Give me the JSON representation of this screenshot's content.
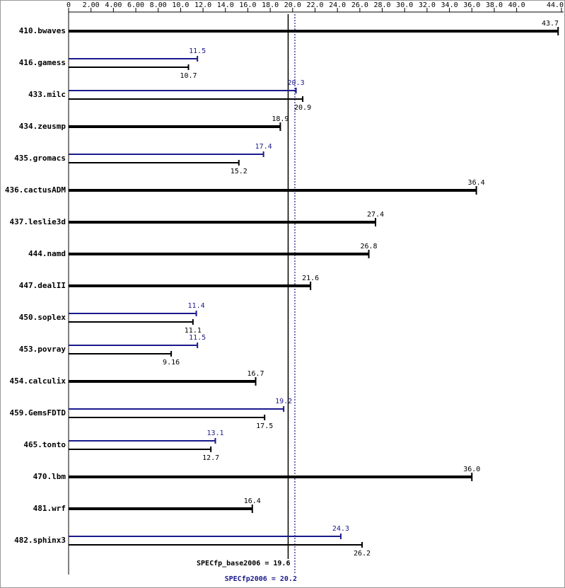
{
  "chart_data": {
    "type": "hbar",
    "categories": [
      "410.bwaves",
      "416.gamess",
      "433.milc",
      "434.zeusmp",
      "435.gromacs",
      "436.cactusADM",
      "437.leslie3d",
      "444.namd",
      "447.dealII",
      "450.soplex",
      "453.povray",
      "454.calculix",
      "459.GemsFDTD",
      "465.tonto",
      "470.lbm",
      "481.wrf",
      "482.sphinx3"
    ],
    "series": [
      {
        "color": "#000000",
        "values": [
          43.7,
          10.7,
          20.9,
          18.9,
          15.2,
          36.4,
          27.4,
          26.8,
          21.6,
          11.1,
          9.16,
          16.7,
          17.5,
          12.7,
          36.0,
          16.4,
          26.2
        ],
        "value_labels": [
          "43.7",
          "10.7",
          "20.9",
          "18.9",
          "15.2",
          "36.4",
          "27.4",
          "26.8",
          "21.6",
          "11.1",
          "9.16",
          "16.7",
          "17.5",
          "12.7",
          "36.0",
          "16.4",
          "26.2"
        ]
      },
      {
        "color": "#1a1a8c",
        "values": [
          null,
          11.5,
          20.3,
          null,
          17.4,
          null,
          null,
          null,
          null,
          11.4,
          11.5,
          null,
          19.2,
          13.1,
          null,
          null,
          24.3
        ],
        "value_labels": [
          null,
          "11.5",
          "20.3",
          null,
          "17.4",
          null,
          null,
          null,
          null,
          "11.4",
          "11.5",
          null,
          "19.2",
          "13.1",
          null,
          null,
          "24.3"
        ]
      }
    ],
    "xlim": [
      0,
      44
    ],
    "xticks": [
      0,
      {
        "value": 2,
        "label": "2.00"
      },
      {
        "value": 4,
        "label": "4.00"
      },
      {
        "value": 6,
        "label": "6.00"
      },
      {
        "value": 8,
        "label": "8.00"
      },
      {
        "value": 10,
        "label": "10.0"
      },
      {
        "value": 12,
        "label": "12.0"
      },
      {
        "value": 14,
        "label": "14.0"
      },
      {
        "value": 16,
        "label": "16.0"
      },
      {
        "value": 18,
        "label": "18.0"
      },
      {
        "value": 20,
        "label": "20.0"
      },
      {
        "value": 22,
        "label": "22.0"
      },
      {
        "value": 24,
        "label": "24.0"
      },
      {
        "value": 26,
        "label": "26.0"
      },
      {
        "value": 28,
        "label": "28.0"
      },
      {
        "value": 30,
        "label": "30.0"
      },
      {
        "value": 32,
        "label": "32.0"
      },
      {
        "value": 34,
        "label": "34.0"
      },
      {
        "value": 36,
        "label": "36.0"
      },
      {
        "value": 38,
        "label": "38.0"
      },
      {
        "value": 40,
        "label": "40.0"
      },
      {
        "value": 44,
        "label": "44.0"
      }
    ],
    "reference_lines": [
      {
        "value": 19.6,
        "label": "SPECfp_base2006 = 19.6",
        "color": "#000000",
        "style": "solid"
      },
      {
        "value": 20.2,
        "label": "SPECfp2006 = 20.2",
        "color": "#1a1a8c",
        "style": "dotted"
      }
    ]
  }
}
